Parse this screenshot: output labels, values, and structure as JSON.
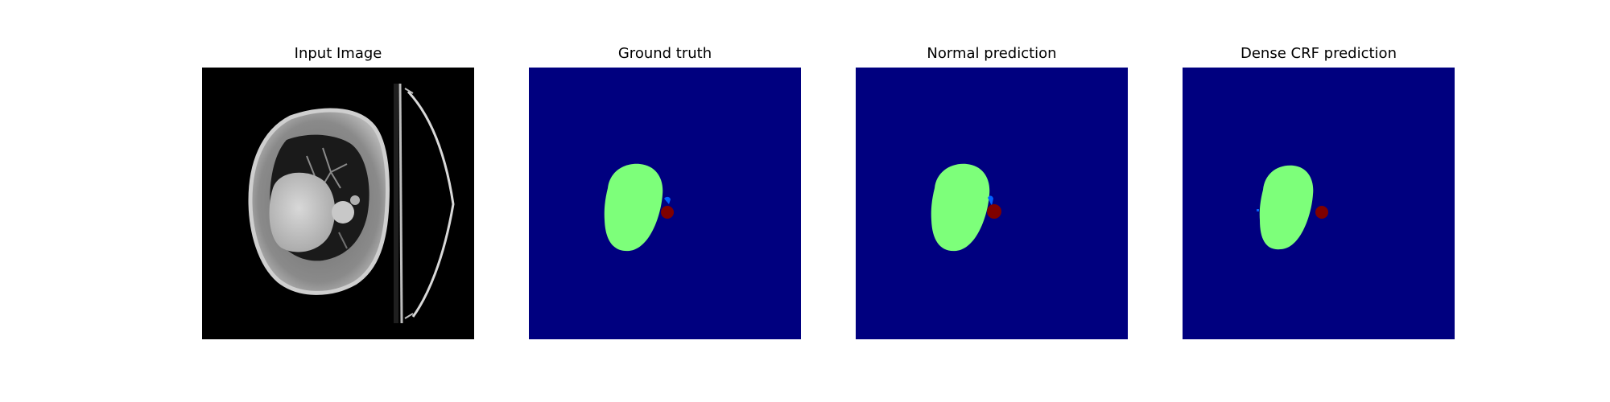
{
  "panels": [
    {
      "title": "Input Image"
    },
    {
      "title": "Ground truth"
    },
    {
      "title": "Normal prediction"
    },
    {
      "title": "Dense CRF prediction"
    }
  ],
  "colors": {
    "background_class": "#00007f",
    "organ_class": "#7dff7a",
    "lesion_class": "#7f0000",
    "minor_class": "#0060ff",
    "ct_background": "#000000"
  }
}
